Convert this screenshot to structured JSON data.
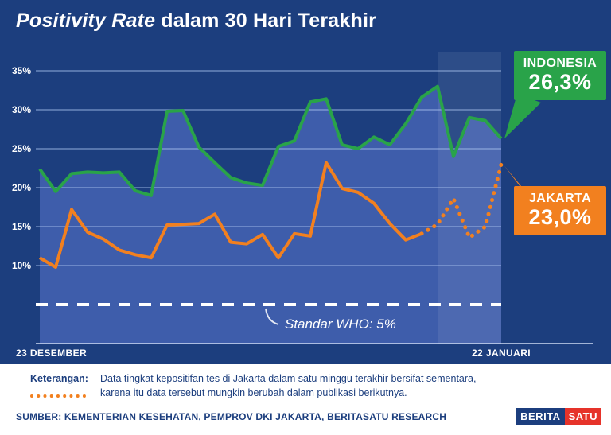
{
  "colors": {
    "navy": "#1c3e7e",
    "green": "#29a349",
    "orange": "#f2801f",
    "red": "#e6332a",
    "area": "#3e5dab",
    "white": "#ffffff"
  },
  "title": {
    "italic": "Positivity Rate",
    "rest": "dalam 30 Hari Terakhir"
  },
  "chart_data": {
    "type": "line",
    "title": "Positivity Rate dalam 30 Hari Terakhir",
    "x_start_label": "23 DESEMBER",
    "x_end_label": "22 JANUARI",
    "n_days": 30,
    "ylim": [
      0,
      37
    ],
    "yticks": [
      10,
      15,
      20,
      25,
      30,
      35
    ],
    "ytick_labels": [
      "10%",
      "15%",
      "20%",
      "25%",
      "30%",
      "35%"
    ],
    "grid": true,
    "legend_position": "right",
    "who_line": {
      "value": 5,
      "label": "Standar WHO: 5%"
    },
    "highlight_band_from_index": 25,
    "series": [
      {
        "name": "INDONESIA",
        "color": "#29a349",
        "current_value": 26.3,
        "current_label": "26,3%",
        "values": [
          22.4,
          19.5,
          21.8,
          22.0,
          21.9,
          22.0,
          19.6,
          19.0,
          29.8,
          29.9,
          25.2,
          23.2,
          21.3,
          20.6,
          20.3,
          25.3,
          26.0,
          31.0,
          31.4,
          25.5,
          25.0,
          26.5,
          25.5,
          28.2,
          31.6,
          33.0,
          24.0,
          29.0,
          28.6,
          26.3
        ]
      },
      {
        "name": "JAKARTA",
        "color": "#f2801f",
        "current_value": 23.0,
        "current_label": "23,0%",
        "dotted_from_index": 24,
        "values": [
          11.0,
          9.8,
          17.2,
          14.3,
          13.4,
          12.0,
          11.4,
          11.0,
          15.2,
          15.3,
          15.4,
          16.6,
          13.0,
          12.8,
          14.0,
          11.0,
          14.1,
          13.8,
          23.2,
          19.9,
          19.4,
          18.0,
          15.4,
          13.3,
          14.1,
          15.3,
          18.6,
          13.6,
          15.0,
          23.0
        ]
      }
    ]
  },
  "footnote": {
    "label": "Keterangan:",
    "line1": "Data tingkat kepositifan tes di Jakarta dalam satu minggu terakhir bersifat sementara,",
    "line2": "karena itu data tersebut mungkin berubah dalam publikasi berikutnya."
  },
  "source": "SUMBER: KEMENTERIAN KESEHATAN, PEMPROV DKI JAKARTA, BERITASATU RESEARCH",
  "logo": {
    "part1": "BERITA",
    "part2": "SATU"
  }
}
